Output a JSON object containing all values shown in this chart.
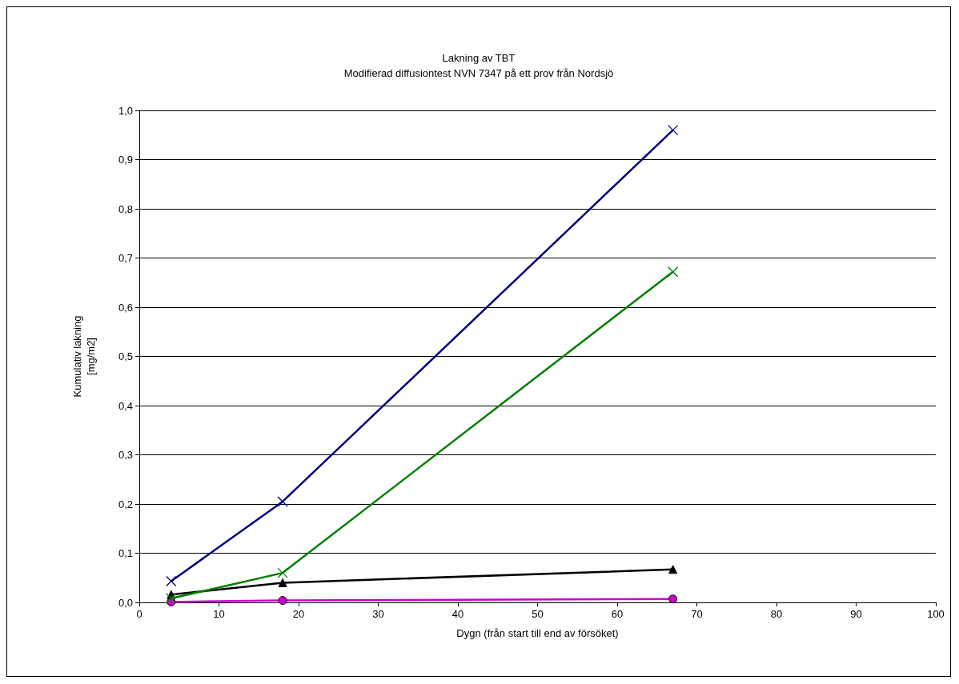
{
  "chart_data": {
    "type": "line",
    "title": "Lakning av TBT",
    "subtitle": "Modifierad diffusiontest NVN 7347 på ett prov från Nordsjö",
    "xlabel": "Dygn (från start till end av försöket)",
    "ylabel": "Kumulativ lakning\n[mg/m2]",
    "x": [
      4,
      18,
      67
    ],
    "xlim": [
      0,
      100
    ],
    "xticks": [
      0,
      10,
      20,
      30,
      40,
      50,
      60,
      70,
      80,
      90,
      100
    ],
    "ylim": [
      0,
      1
    ],
    "yticks": [
      {
        "value": 0,
        "label": "0,0"
      },
      {
        "value": 0.1,
        "label": "0,1"
      },
      {
        "value": 0.2,
        "label": "0,2"
      },
      {
        "value": 0.3,
        "label": "0,3"
      },
      {
        "value": 0.4,
        "label": "0,4"
      },
      {
        "value": 0.5,
        "label": "0,5"
      },
      {
        "value": 0.6,
        "label": "0,6"
      },
      {
        "value": 0.7,
        "label": "0,7"
      },
      {
        "value": 0.8,
        "label": "0,8"
      },
      {
        "value": 0.9,
        "label": "0,9"
      },
      {
        "value": 1,
        "label": "1,0"
      }
    ],
    "grid": "y",
    "series": [
      {
        "color": "#000080",
        "marker": "cross",
        "values": [
          0.043,
          0.205,
          0.96
        ]
      },
      {
        "color": "#008000",
        "marker": "cross",
        "values": [
          0.008,
          0.06,
          0.672
        ]
      },
      {
        "color": "#000000",
        "marker": "triangle",
        "values": [
          0.016,
          0.04,
          0.067
        ]
      },
      {
        "color": "#cc00cc",
        "marker": "circle",
        "values": [
          0.001,
          0.004,
          0.007
        ]
      }
    ]
  }
}
